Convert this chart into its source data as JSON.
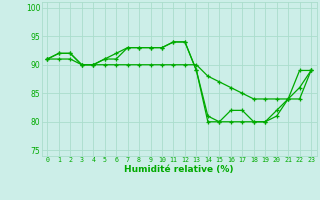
{
  "xlabel": "Humidité relative (%)",
  "background_color": "#cceee8",
  "grid_color": "#aaddcc",
  "line_color": "#00aa00",
  "xlim": [
    -0.5,
    23.5
  ],
  "ylim": [
    74,
    101
  ],
  "yticks": [
    75,
    80,
    85,
    90,
    95,
    100
  ],
  "xticks": [
    0,
    1,
    2,
    3,
    4,
    5,
    6,
    7,
    8,
    9,
    10,
    11,
    12,
    13,
    14,
    15,
    16,
    17,
    18,
    19,
    20,
    21,
    22,
    23
  ],
  "series": [
    [
      91,
      92,
      92,
      90,
      90,
      91,
      91,
      93,
      93,
      93,
      93,
      94,
      94,
      89,
      81,
      80,
      82,
      82,
      80,
      80,
      82,
      84,
      89,
      89
    ],
    [
      91,
      92,
      92,
      90,
      90,
      91,
      92,
      93,
      93,
      93,
      93,
      94,
      94,
      89,
      80,
      80,
      80,
      80,
      80,
      80,
      81,
      84,
      86,
      89
    ],
    [
      91,
      91,
      91,
      90,
      90,
      90,
      90,
      90,
      90,
      90,
      90,
      90,
      90,
      90,
      88,
      87,
      86,
      85,
      84,
      84,
      84,
      84,
      84,
      89
    ]
  ]
}
